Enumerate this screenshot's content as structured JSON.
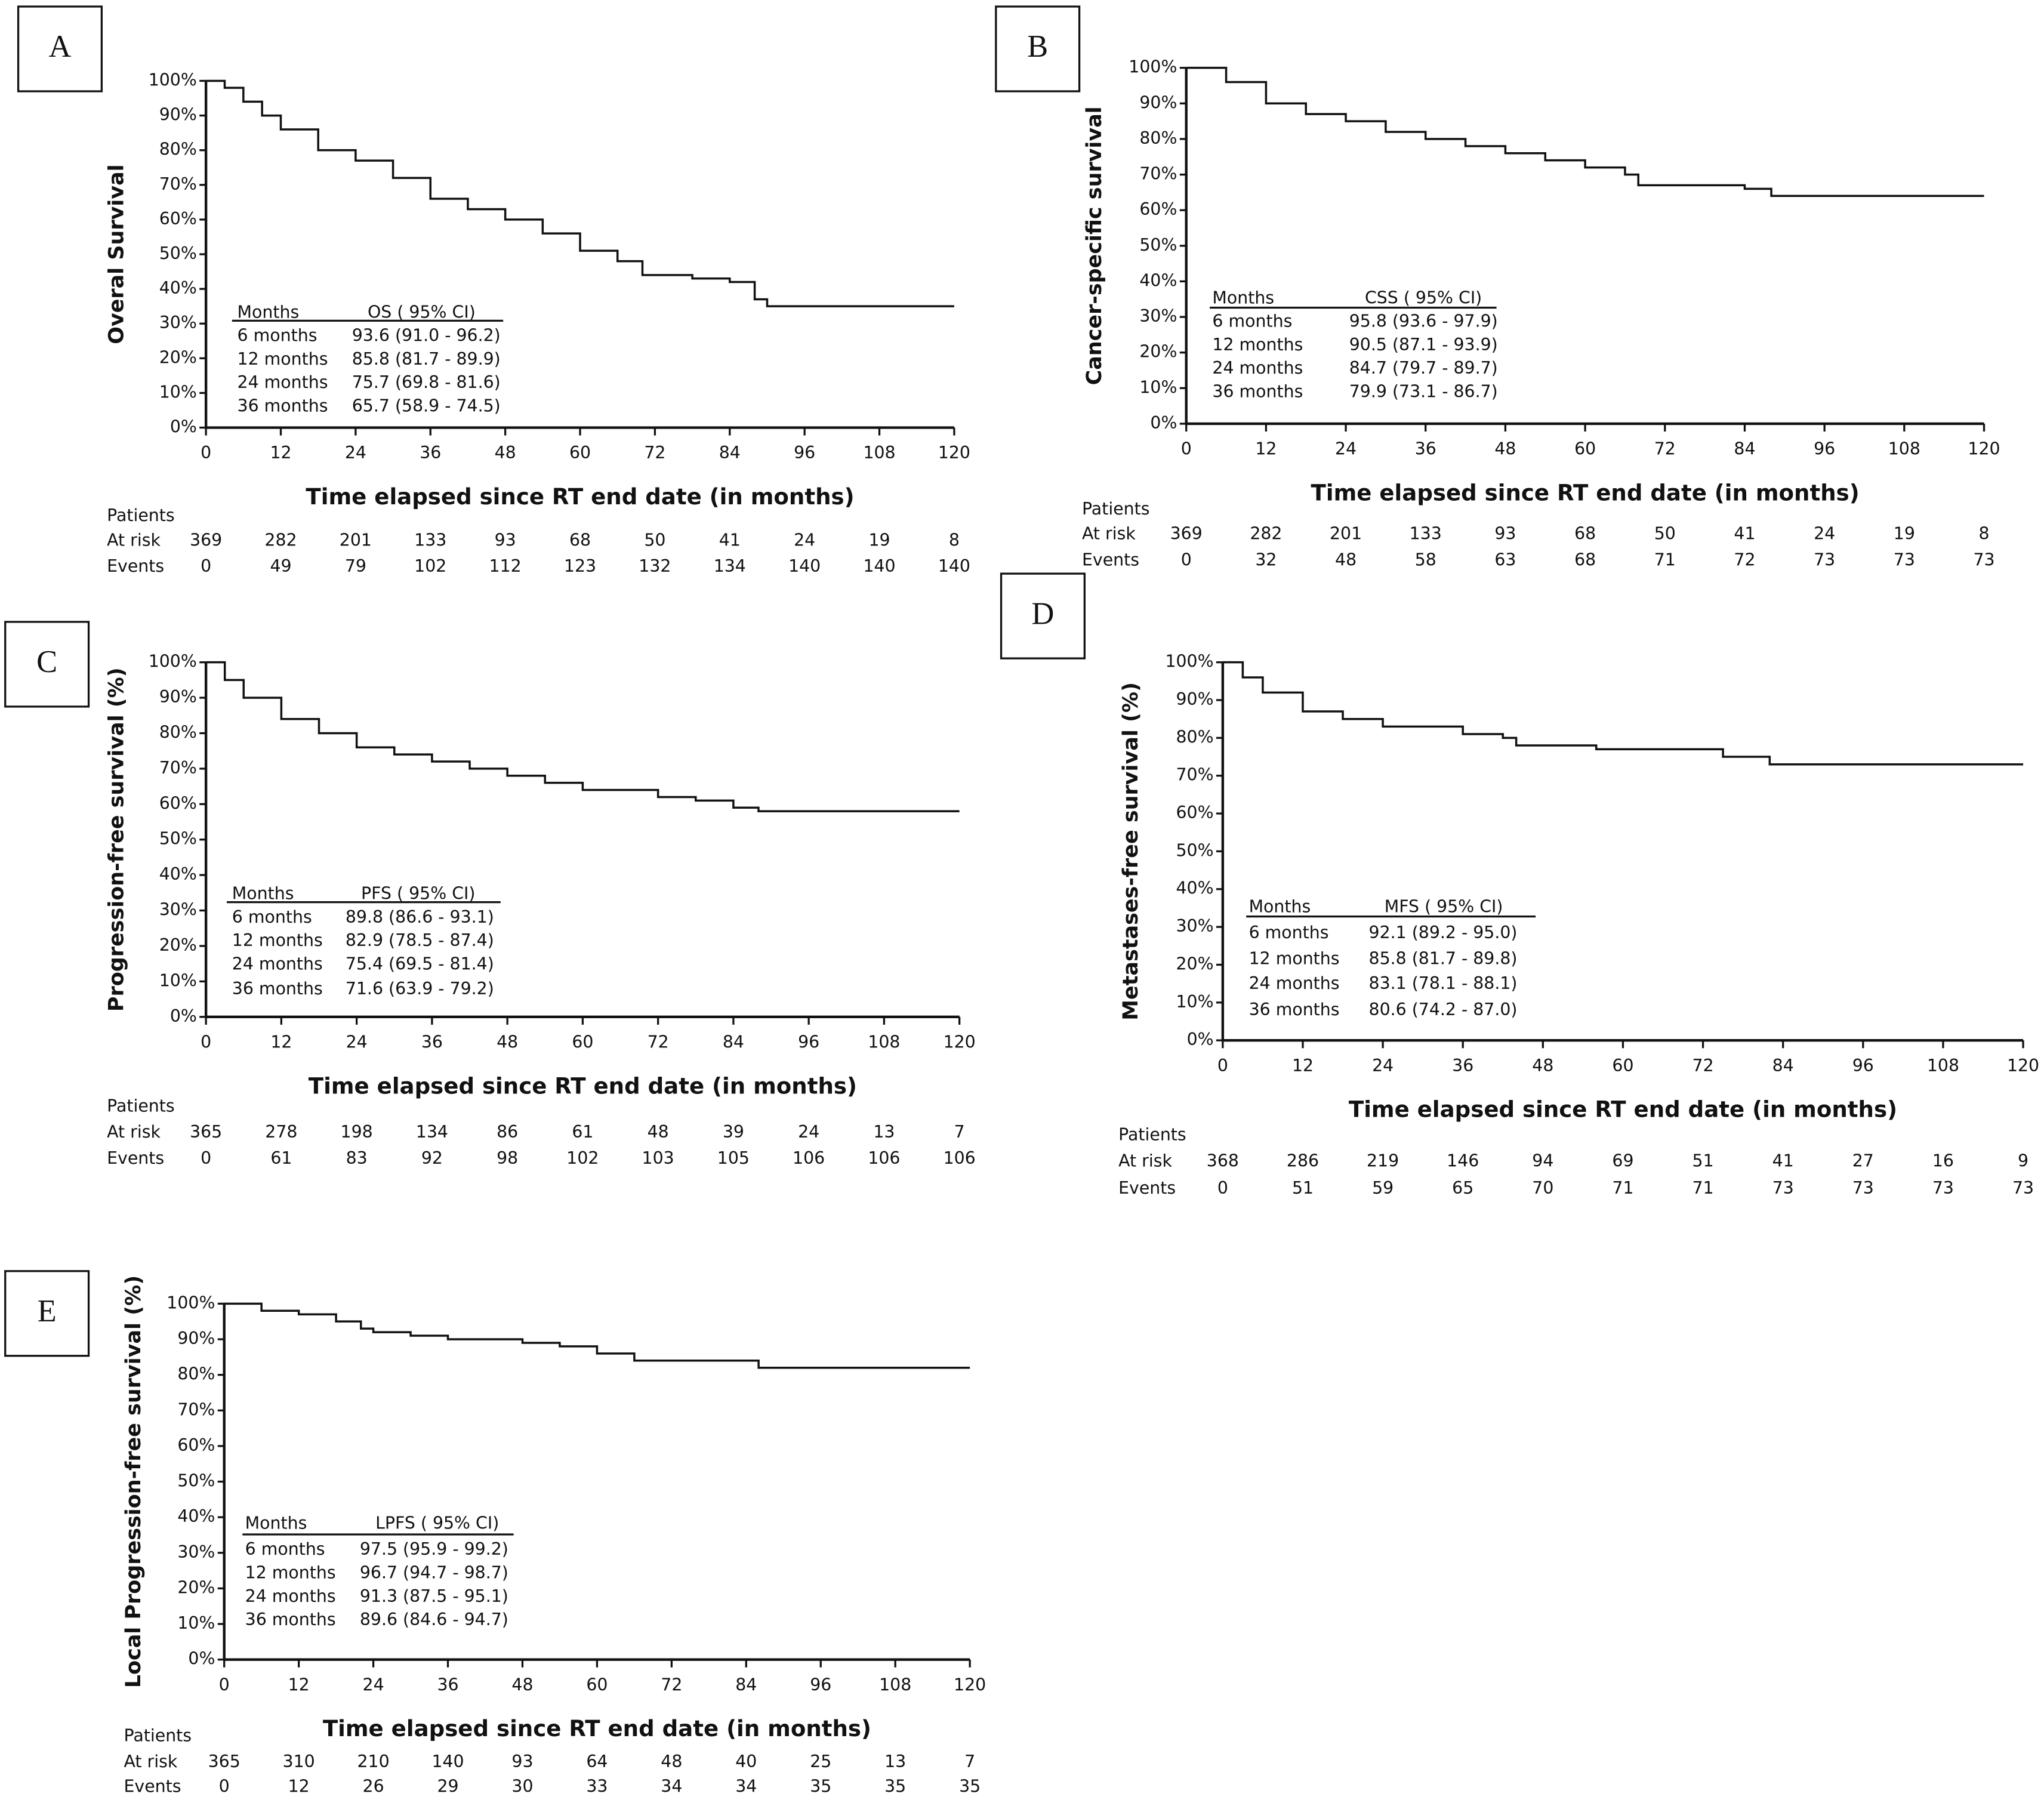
{
  "chart_data": [
    {
      "type": "step",
      "panel": "A",
      "ylabel": "Overal Survival",
      "xlabel": "Time elapsed since RT end date (in months)",
      "xlim": [
        0,
        120
      ],
      "xticks": [
        0,
        12,
        24,
        36,
        48,
        60,
        72,
        84,
        96,
        108,
        120
      ],
      "ylim": [
        0,
        100
      ],
      "yticks": [
        {
          "value": 0,
          "label": "0%"
        },
        {
          "value": 10,
          "label": "10%"
        },
        {
          "value": 20,
          "label": "20%"
        },
        {
          "value": 30,
          "label": "30%"
        },
        {
          "value": 40,
          "label": "40%"
        },
        {
          "value": 50,
          "label": "50%"
        },
        {
          "value": 60,
          "label": "60%"
        },
        {
          "value": 70,
          "label": "70%"
        },
        {
          "value": 80,
          "label": "80%"
        },
        {
          "value": 90,
          "label": "90%"
        },
        {
          "value": 100,
          "label": "100%"
        }
      ],
      "series": [
        {
          "color": "#111111",
          "x": [
            0,
            3,
            6,
            9,
            12,
            18,
            24,
            30,
            36,
            42,
            48,
            54,
            60,
            66,
            70,
            78,
            84,
            88,
            90,
            120
          ],
          "values": [
            100,
            98,
            94,
            90,
            86,
            80,
            77,
            72,
            66,
            63,
            60,
            56,
            51,
            48,
            44,
            43,
            42,
            37,
            35,
            35
          ]
        }
      ],
      "summary": {
        "header": [
          "Months",
          "OS ( 95% CI)"
        ],
        "rows": [
          [
            "6 months",
            "93.6 (91.0 - 96.2)"
          ],
          [
            "12 months",
            "85.8 (81.7 - 89.9)"
          ],
          [
            "24 months",
            "75.7 (69.8 - 81.6)"
          ],
          [
            "36 months",
            "65.7 (58.9 - 74.5)"
          ]
        ]
      },
      "risk_table": {
        "title": "Patients",
        "rows": [
          {
            "label": "At risk",
            "values": [
              369,
              282,
              201,
              133,
              93,
              68,
              50,
              41,
              24,
              19,
              8
            ]
          },
          {
            "label": "Events",
            "values": [
              0,
              49,
              79,
              102,
              112,
              123,
              132,
              134,
              140,
              140,
              140
            ]
          }
        ]
      }
    },
    {
      "type": "step",
      "panel": "B",
      "ylabel": "Cancer-specific survival",
      "xlabel": "Time elapsed since RT end date (in months)",
      "xlim": [
        0,
        120
      ],
      "xticks": [
        0,
        12,
        24,
        36,
        48,
        60,
        72,
        84,
        96,
        108,
        120
      ],
      "ylim": [
        0,
        100
      ],
      "yticks": [
        {
          "value": 0,
          "label": "0%"
        },
        {
          "value": 10,
          "label": "10%"
        },
        {
          "value": 20,
          "label": "20%"
        },
        {
          "value": 30,
          "label": "30%"
        },
        {
          "value": 40,
          "label": "40%"
        },
        {
          "value": 50,
          "label": "50%"
        },
        {
          "value": 60,
          "label": "60%"
        },
        {
          "value": 70,
          "label": "70%"
        },
        {
          "value": 80,
          "label": "80%"
        },
        {
          "value": 90,
          "label": "90%"
        },
        {
          "value": 100,
          "label": "100%"
        }
      ],
      "series": [
        {
          "color": "#111111",
          "x": [
            0,
            6,
            12,
            18,
            24,
            30,
            36,
            42,
            48,
            54,
            60,
            66,
            68,
            78,
            84,
            88,
            120
          ],
          "values": [
            100,
            96,
            90,
            87,
            85,
            82,
            80,
            78,
            76,
            74,
            72,
            70,
            67,
            67,
            66,
            64,
            64
          ]
        }
      ],
      "summary": {
        "header": [
          "Months",
          "CSS ( 95% CI)"
        ],
        "rows": [
          [
            "6 months",
            "95.8 (93.6 - 97.9)"
          ],
          [
            "12 months",
            "90.5 (87.1 - 93.9)"
          ],
          [
            "24 months",
            "84.7 (79.7 - 89.7)"
          ],
          [
            "36 months",
            "79.9 (73.1 - 86.7)"
          ]
        ]
      },
      "risk_table": {
        "title": "Patients",
        "rows": [
          {
            "label": "At risk",
            "values": [
              369,
              282,
              201,
              133,
              93,
              68,
              50,
              41,
              24,
              19,
              8
            ]
          },
          {
            "label": "Events",
            "values": [
              0,
              32,
              48,
              58,
              63,
              68,
              71,
              72,
              73,
              73,
              73
            ]
          }
        ]
      }
    },
    {
      "type": "step",
      "panel": "C",
      "ylabel": "Progression-free survival (%)",
      "xlabel": "Time elapsed since RT end date (in months)",
      "xlim": [
        0,
        120
      ],
      "xticks": [
        0,
        12,
        24,
        36,
        48,
        60,
        72,
        84,
        96,
        108,
        120
      ],
      "ylim": [
        0,
        100
      ],
      "yticks": [
        {
          "value": 0,
          "label": "0%"
        },
        {
          "value": 10,
          "label": "10%"
        },
        {
          "value": 20,
          "label": "20%"
        },
        {
          "value": 30,
          "label": "30%"
        },
        {
          "value": 40,
          "label": "40%"
        },
        {
          "value": 50,
          "label": "50%"
        },
        {
          "value": 60,
          "label": "60%"
        },
        {
          "value": 70,
          "label": "70%"
        },
        {
          "value": 80,
          "label": "80%"
        },
        {
          "value": 90,
          "label": "90%"
        },
        {
          "value": 100,
          "label": "100%"
        }
      ],
      "series": [
        {
          "color": "#111111",
          "x": [
            0,
            3,
            6,
            12,
            18,
            24,
            30,
            36,
            42,
            48,
            54,
            60,
            72,
            78,
            84,
            88,
            120
          ],
          "values": [
            100,
            95,
            90,
            84,
            80,
            76,
            74,
            72,
            70,
            68,
            66,
            64,
            62,
            61,
            59,
            58,
            58
          ]
        }
      ],
      "summary": {
        "header": [
          "Months",
          "PFS ( 95% CI)"
        ],
        "rows": [
          [
            "6 months",
            "89.8 (86.6 - 93.1)"
          ],
          [
            "12 months",
            "82.9 (78.5 - 87.4)"
          ],
          [
            "24 months",
            "75.4 (69.5 - 81.4)"
          ],
          [
            "36 months",
            "71.6 (63.9 - 79.2)"
          ]
        ]
      },
      "risk_table": {
        "title": "Patients",
        "rows": [
          {
            "label": "At risk",
            "values": [
              365,
              278,
              198,
              134,
              86,
              61,
              48,
              39,
              24,
              13,
              7
            ]
          },
          {
            "label": "Events",
            "values": [
              0,
              61,
              83,
              92,
              98,
              102,
              103,
              105,
              106,
              106,
              106
            ]
          }
        ]
      }
    },
    {
      "type": "step",
      "panel": "D",
      "ylabel": "Metastases-free survival (%)",
      "xlabel": "Time elapsed since RT end date (in months)",
      "xlim": [
        0,
        120
      ],
      "xticks": [
        0,
        12,
        24,
        36,
        48,
        60,
        72,
        84,
        96,
        108,
        120
      ],
      "ylim": [
        0,
        100
      ],
      "yticks": [
        {
          "value": 0,
          "label": "0%"
        },
        {
          "value": 10,
          "label": "10%"
        },
        {
          "value": 20,
          "label": "20%"
        },
        {
          "value": 30,
          "label": "30%"
        },
        {
          "value": 40,
          "label": "40%"
        },
        {
          "value": 50,
          "label": "50%"
        },
        {
          "value": 60,
          "label": "60%"
        },
        {
          "value": 70,
          "label": "70%"
        },
        {
          "value": 80,
          "label": "80%"
        },
        {
          "value": 90,
          "label": "90%"
        },
        {
          "value": 100,
          "label": "100%"
        }
      ],
      "series": [
        {
          "color": "#111111",
          "x": [
            0,
            3,
            6,
            12,
            18,
            24,
            36,
            42,
            44,
            54,
            56,
            72,
            75,
            80,
            82,
            120
          ],
          "values": [
            100,
            96,
            92,
            87,
            85,
            83,
            81,
            80,
            78,
            78,
            77,
            77,
            75,
            75,
            73,
            73
          ]
        }
      ],
      "summary": {
        "header": [
          "Months",
          "MFS ( 95% CI)"
        ],
        "rows": [
          [
            "6 months",
            "92.1 (89.2 - 95.0)"
          ],
          [
            "12 months",
            "85.8 (81.7 - 89.8)"
          ],
          [
            "24 months",
            "83.1 (78.1 - 88.1)"
          ],
          [
            "36 months",
            "80.6 (74.2 - 87.0)"
          ]
        ]
      },
      "risk_table": {
        "title": "Patients",
        "rows": [
          {
            "label": "At risk",
            "values": [
              368,
              286,
              219,
              146,
              94,
              69,
              51,
              41,
              27,
              16,
              9
            ]
          },
          {
            "label": "Events",
            "values": [
              0,
              51,
              59,
              65,
              70,
              71,
              71,
              73,
              73,
              73,
              73
            ]
          }
        ]
      }
    },
    {
      "type": "step",
      "panel": "E",
      "ylabel": "Local Progression-free survival (%)",
      "xlabel": "Time elapsed since RT end date (in months)",
      "xlim": [
        0,
        120
      ],
      "xticks": [
        0,
        12,
        24,
        36,
        48,
        60,
        72,
        84,
        96,
        108,
        120
      ],
      "ylim": [
        0,
        100
      ],
      "yticks": [
        {
          "value": 0,
          "label": "0%"
        },
        {
          "value": 10,
          "label": "10%"
        },
        {
          "value": 20,
          "label": "20%"
        },
        {
          "value": 30,
          "label": "30%"
        },
        {
          "value": 40,
          "label": "40%"
        },
        {
          "value": 50,
          "label": "50%"
        },
        {
          "value": 60,
          "label": "60%"
        },
        {
          "value": 70,
          "label": "70%"
        },
        {
          "value": 80,
          "label": "80%"
        },
        {
          "value": 90,
          "label": "90%"
        },
        {
          "value": 100,
          "label": "100%"
        }
      ],
      "series": [
        {
          "color": "#111111",
          "x": [
            0,
            6,
            12,
            18,
            22,
            24,
            30,
            36,
            48,
            54,
            60,
            66,
            84,
            86,
            120
          ],
          "values": [
            100,
            98,
            97,
            95,
            93,
            92,
            91,
            90,
            89,
            88,
            86,
            84,
            84,
            82,
            82
          ]
        }
      ],
      "summary": {
        "header": [
          "Months",
          "LPFS ( 95% CI)"
        ],
        "rows": [
          [
            "6 months",
            "97.5 (95.9 - 99.2)"
          ],
          [
            "12 months",
            "96.7 (94.7 - 98.7)"
          ],
          [
            "24 months",
            "91.3 (87.5 - 95.1)"
          ],
          [
            "36 months",
            "89.6 (84.6 - 94.7)"
          ]
        ]
      },
      "risk_table": {
        "title": "Patients",
        "rows": [
          {
            "label": "At risk",
            "values": [
              365,
              310,
              210,
              140,
              93,
              64,
              48,
              40,
              25,
              13,
              7
            ]
          },
          {
            "label": "Events",
            "values": [
              0,
              12,
              26,
              29,
              30,
              33,
              34,
              34,
              35,
              35,
              35
            ]
          }
        ]
      }
    }
  ]
}
